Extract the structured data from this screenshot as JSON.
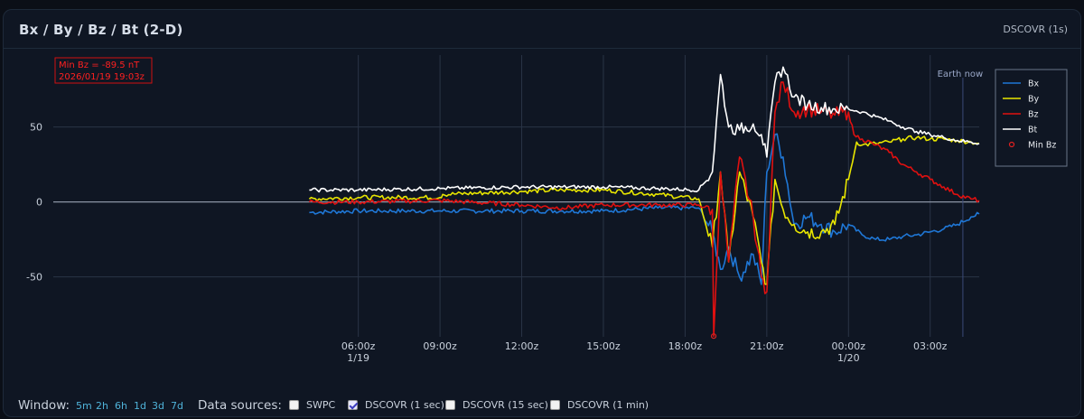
{
  "header": {
    "title": "Bx / By / Bz / Bt (2-D)",
    "source": "DSCOVR (1s)"
  },
  "annotation": {
    "line1": "Min Bz = -89.5 nT",
    "line2": "2026/01/19 19:03z"
  },
  "earth_now": "Earth now",
  "footer": {
    "window_label": "Window:",
    "windows": [
      "5m",
      "2h",
      "6h",
      "1d",
      "3d",
      "7d"
    ],
    "sources_label": "Data sources:",
    "sources": [
      {
        "label": "SWPC",
        "checked": false
      },
      {
        "label": "DSCOVR (1 sec)",
        "checked": true
      },
      {
        "label": "DSCOVR (15 sec)",
        "checked": false
      },
      {
        "label": "DSCOVR (1 min)",
        "checked": false
      }
    ]
  },
  "colors": {
    "Bx": "#1f77d6",
    "By": "#e8e600",
    "Bz": "#e01010",
    "Bt": "#ffffff",
    "min_marker": "#e02020"
  },
  "chart_data": {
    "type": "line",
    "xlabel": "",
    "ylabel": "",
    "ylim": [
      -90,
      98
    ],
    "xlim": [
      -5.2,
      28.8
    ],
    "x_unit": "hours since 2026-01-19 00:00z",
    "xticks": [
      {
        "value": 6,
        "label": "06:00z",
        "sub": "1/19"
      },
      {
        "value": 9,
        "label": "09:00z",
        "sub": ""
      },
      {
        "value": 12,
        "label": "12:00z",
        "sub": ""
      },
      {
        "value": 15,
        "label": "15:00z",
        "sub": ""
      },
      {
        "value": 18,
        "label": "18:00z",
        "sub": ""
      },
      {
        "value": 21,
        "label": "21:00z",
        "sub": ""
      },
      {
        "value": 24,
        "label": "00:00z",
        "sub": "1/20"
      },
      {
        "value": 27,
        "label": "03:00z",
        "sub": ""
      }
    ],
    "yticks": [
      50,
      0,
      -50
    ],
    "earth_now_x": 28.2,
    "legend": [
      "Bx",
      "By",
      "Bz",
      "Bt",
      "Min Bz"
    ],
    "legend_position": "top-right",
    "min_bz": {
      "x": 19.05,
      "y": -89.5
    },
    "series": [
      {
        "name": "Bx",
        "x": [
          4.2,
          6,
          9,
          12,
          13.5,
          15,
          17,
          18.5,
          19,
          19.3,
          19.6,
          20,
          20.5,
          20.8,
          21,
          21.3,
          21.6,
          22,
          22.5,
          23,
          23.5,
          24,
          24.5,
          25,
          25.5,
          26,
          26.5,
          27,
          27.5,
          28,
          28.5,
          28.8
        ],
        "y": [
          -7,
          -6,
          -6,
          -6,
          -6,
          -6,
          -4,
          -4,
          -20,
          -45,
          -30,
          -50,
          -35,
          -55,
          20,
          45,
          30,
          -15,
          -10,
          -15,
          -20,
          -15,
          -22,
          -25,
          -25,
          -23,
          -22,
          -20,
          -18,
          -15,
          -10,
          -8
        ]
      },
      {
        "name": "By",
        "x": [
          4.2,
          6,
          9,
          9.1,
          12,
          13.5,
          15,
          17,
          18.5,
          19,
          19.3,
          19.6,
          20,
          20.5,
          20.8,
          21,
          21.3,
          21.6,
          22,
          22.5,
          23,
          23.5,
          24,
          24.3,
          24.5,
          25,
          25.5,
          26,
          26.5,
          27,
          27.5,
          28,
          28.5,
          28.8
        ],
        "y": [
          2,
          3,
          3,
          5,
          7,
          8,
          8,
          5,
          2,
          -30,
          20,
          -40,
          20,
          -10,
          -40,
          -55,
          15,
          -5,
          -15,
          -20,
          -20,
          -15,
          15,
          40,
          38,
          39,
          40,
          42,
          43,
          42,
          42,
          41,
          40,
          39
        ]
      },
      {
        "name": "Bz",
        "x": [
          4.2,
          6,
          9,
          12,
          13.5,
          15,
          17,
          18.5,
          19,
          19.05,
          19.3,
          19.6,
          20,
          20.5,
          20.8,
          21,
          21.3,
          21.6,
          22,
          22.5,
          23,
          23.5,
          24,
          24.2,
          24.5,
          25,
          25.5,
          26,
          26.5,
          27,
          27.5,
          28,
          28.5,
          28.8
        ],
        "y": [
          0,
          0,
          1,
          -2,
          -4,
          -2,
          -2,
          -2,
          -5,
          -89.5,
          20,
          -40,
          30,
          -10,
          -50,
          -60,
          60,
          80,
          60,
          62,
          60,
          58,
          60,
          45,
          42,
          38,
          33,
          25,
          20,
          15,
          10,
          5,
          2,
          1
        ]
      },
      {
        "name": "Bt",
        "x": [
          4.2,
          6,
          9,
          12,
          13.5,
          15,
          17,
          18.5,
          19,
          19.3,
          19.6,
          20,
          20.5,
          20.8,
          21,
          21.3,
          21.6,
          22,
          22.5,
          23,
          23.5,
          24,
          24.5,
          25,
          25.5,
          26,
          26.5,
          27,
          27.5,
          28,
          28.5,
          28.8
        ],
        "y": [
          8,
          8,
          9,
          10,
          10,
          10,
          9,
          8,
          20,
          85,
          50,
          48,
          52,
          45,
          30,
          80,
          90,
          70,
          65,
          63,
          62,
          62,
          60,
          57,
          54,
          50,
          47,
          45,
          43,
          41,
          40,
          39
        ]
      }
    ]
  }
}
